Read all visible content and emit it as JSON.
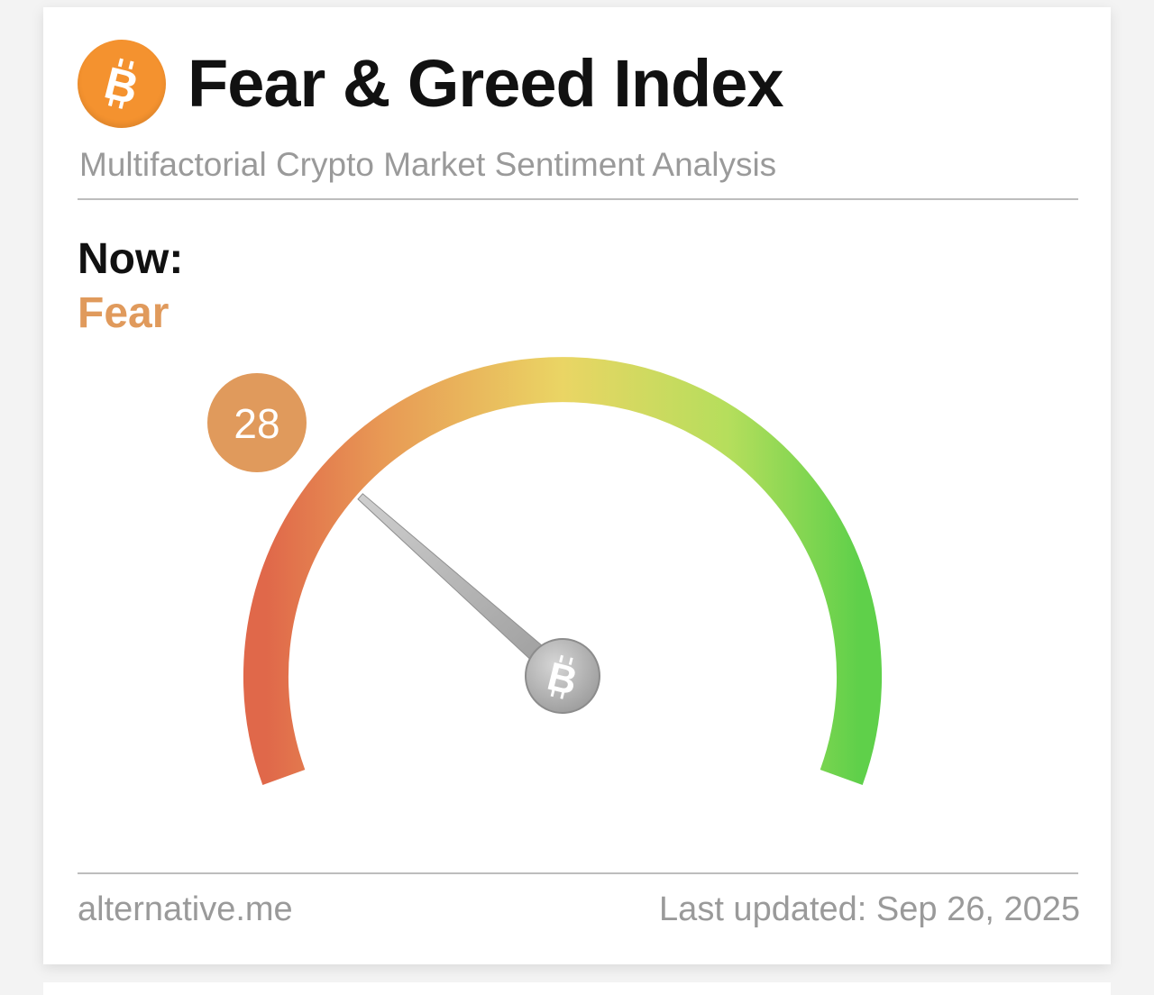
{
  "header": {
    "logo_icon": "bitcoin-icon",
    "title": "Fear & Greed Index",
    "subtitle": "Multifactorial Crypto Market Sentiment Analysis"
  },
  "current": {
    "label": "Now:",
    "classification": "Fear",
    "value": "28",
    "value_fraction": 0.28
  },
  "gauge": {
    "min": 0,
    "max": 100,
    "hub_icon": "bitcoin-icon"
  },
  "footer": {
    "source": "alternative.me",
    "updated": "Last updated: Sep 26, 2025"
  },
  "colors": {
    "brand_orange": "#f4922f",
    "fear_orange": "#e09a5c",
    "gauge_low": "#e0684a",
    "gauge_mid": "#ead564",
    "gauge_high": "#5fd04a",
    "needle": "#a8a8a8"
  }
}
